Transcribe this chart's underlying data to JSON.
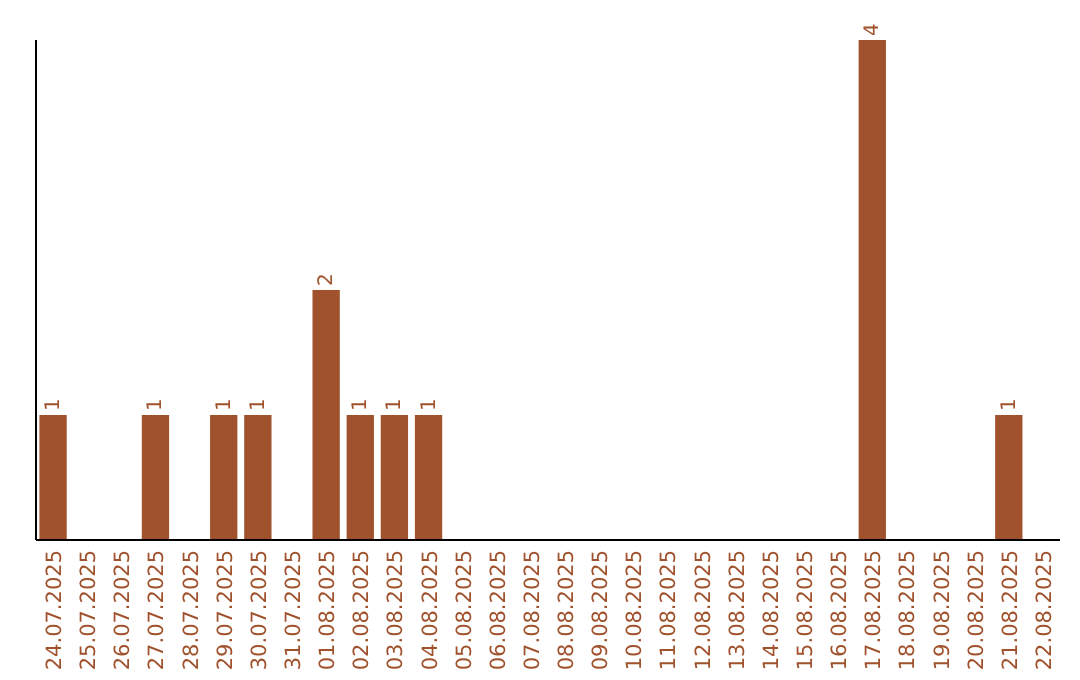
{
  "chart_data": {
    "type": "bar",
    "categories": [
      "24.07.2025",
      "25.07.2025",
      "26.07.2025",
      "27.07.2025",
      "28.07.2025",
      "29.07.2025",
      "30.07.2025",
      "31.07.2025",
      "01.08.2025",
      "02.08.2025",
      "03.08.2025",
      "04.08.2025",
      "05.08.2025",
      "06.08.2025",
      "07.08.2025",
      "08.08.2025",
      "09.08.2025",
      "10.08.2025",
      "11.08.2025",
      "12.08.2025",
      "13.08.2025",
      "14.08.2025",
      "15.08.2025",
      "16.08.2025",
      "17.08.2025",
      "18.08.2025",
      "19.08.2025",
      "20.08.2025",
      "21.08.2025",
      "22.08.2025"
    ],
    "values": [
      1,
      0,
      0,
      1,
      0,
      1,
      1,
      0,
      2,
      1,
      1,
      1,
      0,
      0,
      0,
      0,
      0,
      0,
      0,
      0,
      0,
      0,
      0,
      0,
      4,
      0,
      0,
      0,
      1,
      0
    ],
    "value_labels": [
      "1",
      null,
      null,
      "1",
      null,
      "1",
      "1",
      null,
      "2",
      "1",
      "1",
      "1",
      null,
      null,
      null,
      null,
      null,
      null,
      null,
      null,
      null,
      null,
      null,
      null,
      "4",
      null,
      null,
      null,
      "1",
      null
    ],
    "color": "#a0522d",
    "ylim": [
      0,
      4
    ],
    "tick_labels": "x"
  }
}
